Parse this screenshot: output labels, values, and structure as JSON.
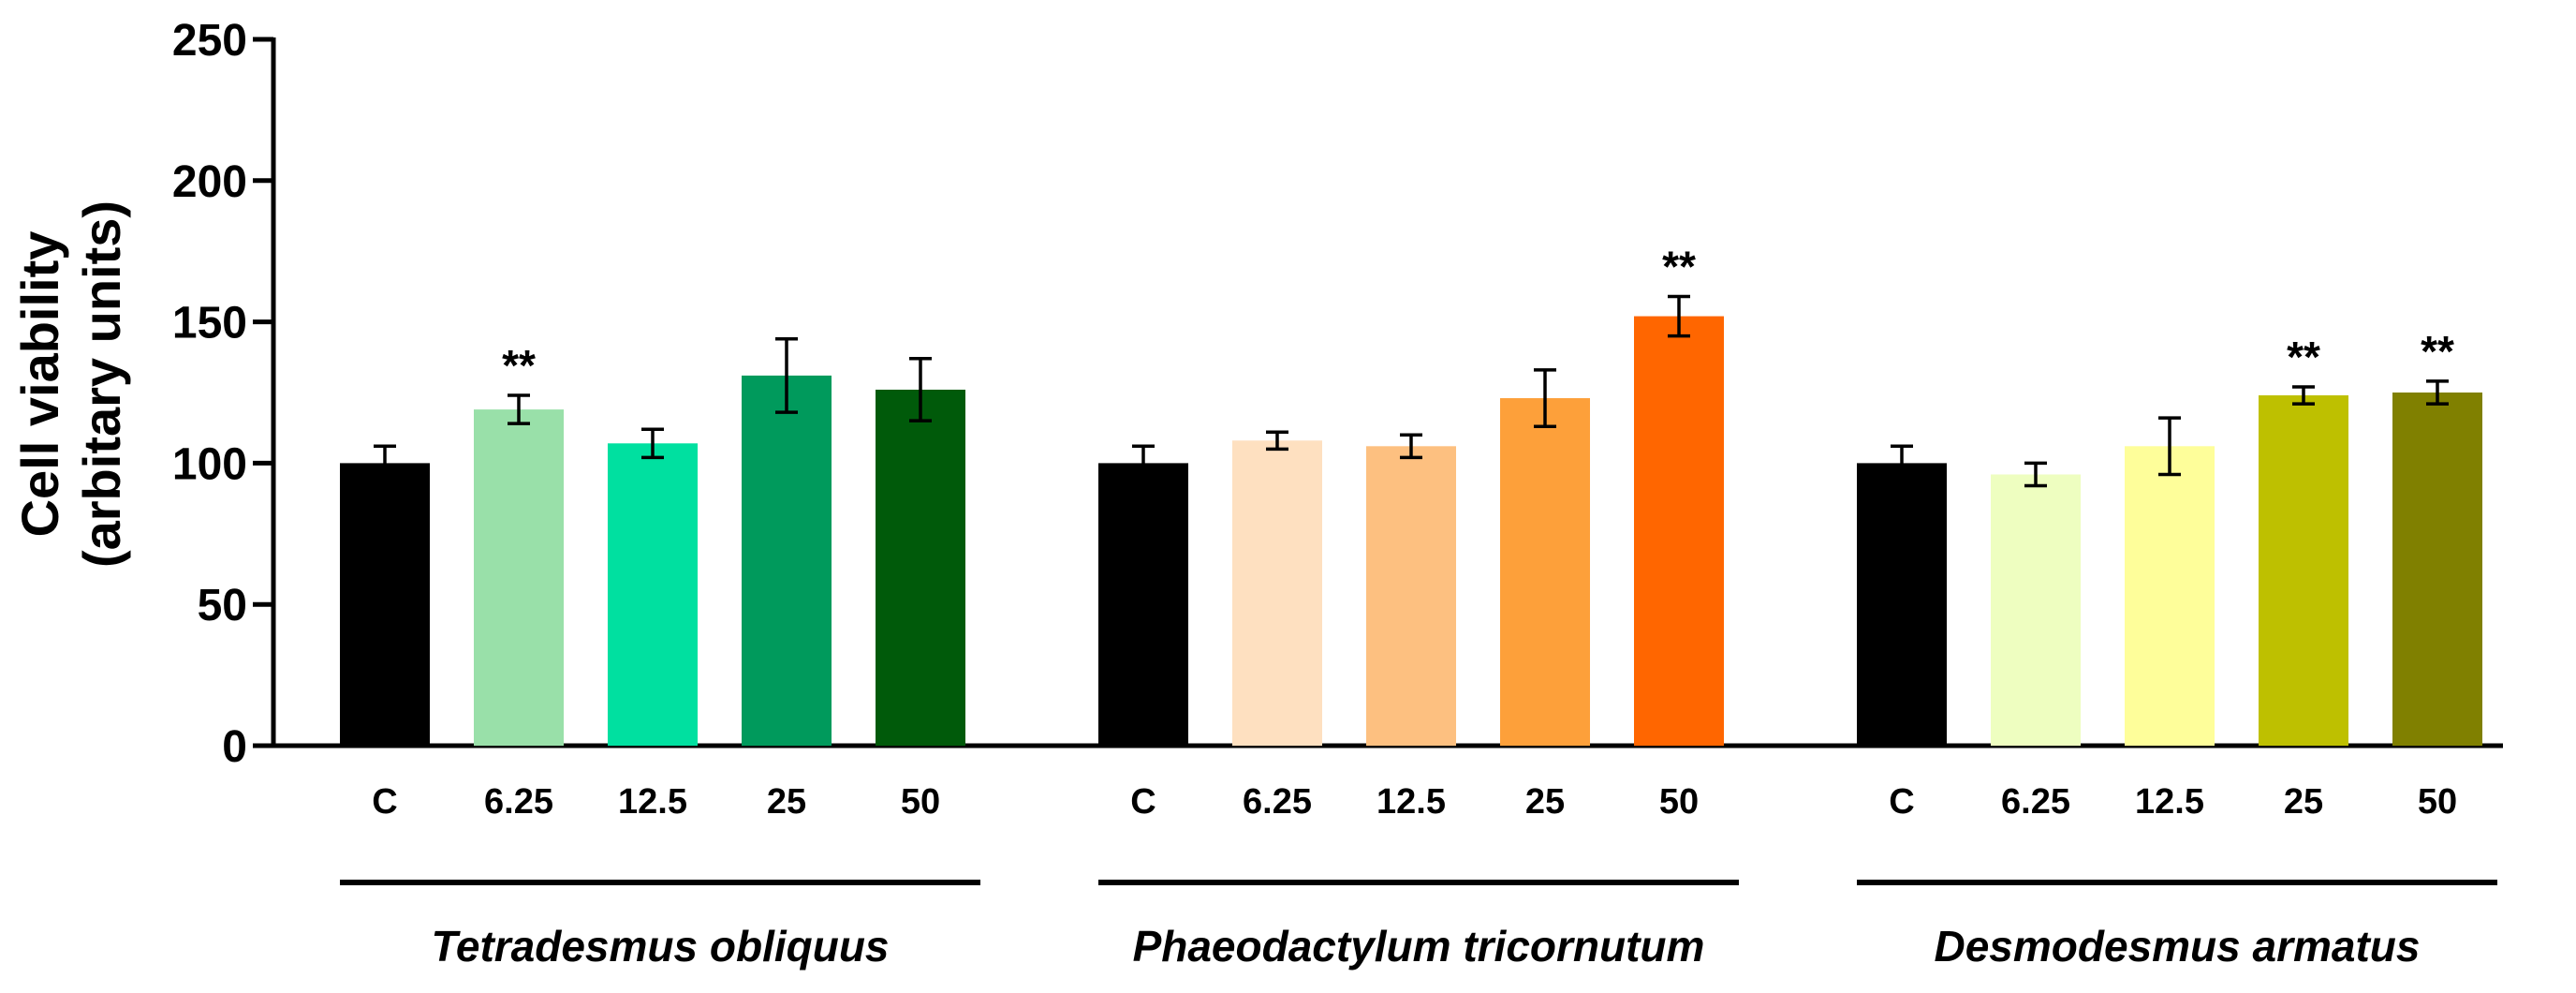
{
  "chart_data": {
    "type": "bar",
    "title": "",
    "xlabel": "",
    "ylabel_lines": [
      "Cell viability",
      "(arbitary units)"
    ],
    "ylim": [
      0,
      250
    ],
    "yticks": [
      "0",
      "50",
      "100",
      "150",
      "200",
      "250"
    ],
    "groups": [
      {
        "name": "Tetradesmus obliquus",
        "bars": [
          {
            "category": "C",
            "value": 100,
            "error": 6,
            "color": "#000000",
            "significance": ""
          },
          {
            "category": "6.25",
            "value": 119,
            "error": 5,
            "color": "#99E0A9",
            "significance": "**"
          },
          {
            "category": "12.5",
            "value": 107,
            "error": 5,
            "color": "#00E0A0",
            "significance": ""
          },
          {
            "category": "25",
            "value": 131,
            "error": 13,
            "color": "#009A5C",
            "significance": ""
          },
          {
            "category": "50",
            "value": 126,
            "error": 11,
            "color": "#005A0A",
            "significance": ""
          }
        ]
      },
      {
        "name": "Phaeodactylum tricornutum",
        "bars": [
          {
            "category": "C",
            "value": 100,
            "error": 6,
            "color": "#000000",
            "significance": ""
          },
          {
            "category": "6.25",
            "value": 108,
            "error": 3,
            "color": "#FEE0C0",
            "significance": ""
          },
          {
            "category": "12.5",
            "value": 106,
            "error": 4,
            "color": "#FDC080",
            "significance": ""
          },
          {
            "category": "25",
            "value": 123,
            "error": 10,
            "color": "#FDA03A",
            "significance": ""
          },
          {
            "category": "50",
            "value": 152,
            "error": 7,
            "color": "#FF6600",
            "significance": "**"
          }
        ]
      },
      {
        "name": "Desmodesmus armatus",
        "bars": [
          {
            "category": "C",
            "value": 100,
            "error": 6,
            "color": "#000000",
            "significance": ""
          },
          {
            "category": "6.25",
            "value": 96,
            "error": 4,
            "color": "#EEFEC0",
            "significance": ""
          },
          {
            "category": "12.5",
            "value": 106,
            "error": 10,
            "color": "#FEFE9A",
            "significance": ""
          },
          {
            "category": "25",
            "value": 124,
            "error": 3,
            "color": "#BEC000",
            "significance": "**"
          },
          {
            "category": "50",
            "value": 125,
            "error": 4,
            "color": "#808000",
            "significance": "**"
          }
        ]
      }
    ]
  }
}
